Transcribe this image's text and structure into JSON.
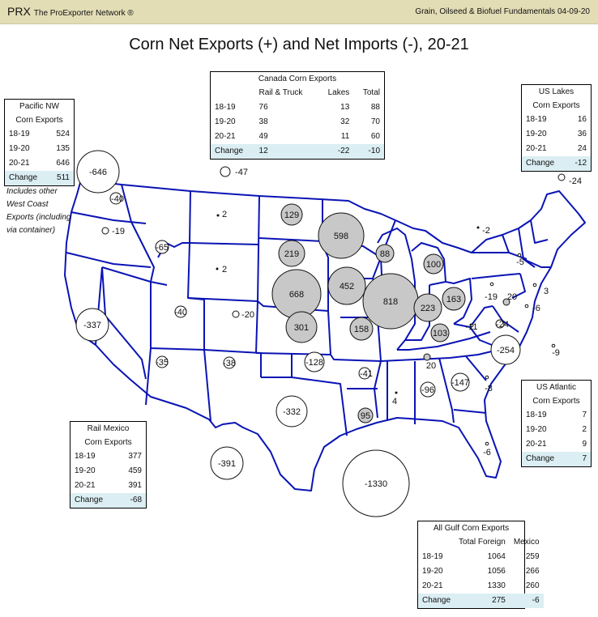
{
  "header": {
    "brand": "PRX",
    "brand_sub": "The ProExporter Network ®",
    "right_text": "Grain, Oilseed & Biofuel Fundamentals  04-09-20"
  },
  "title": "Corn Net Exports (+) and Net Imports (-), 20-21",
  "colors": {
    "banner": "#e3ddb6",
    "state_line": "#0a14b4",
    "export_bubble": "#c8c8c8",
    "import_bubble": "#ffffff",
    "change_row": "#dbeef3"
  },
  "bubbles": [
    {
      "id": "pacific-nw",
      "value": "-646",
      "kind": "import"
    },
    {
      "id": "canada-cross",
      "value": "-47",
      "kind": "import"
    },
    {
      "id": "wa-east",
      "value": "-40",
      "kind": "import"
    },
    {
      "id": "or",
      "value": "-19",
      "kind": "import"
    },
    {
      "id": "id",
      "value": "-65",
      "kind": "import"
    },
    {
      "id": "mt",
      "value": "2",
      "kind": "export"
    },
    {
      "id": "wy",
      "value": "2",
      "kind": "export"
    },
    {
      "id": "nd",
      "value": "129",
      "kind": "export"
    },
    {
      "id": "sd",
      "value": "219",
      "kind": "export"
    },
    {
      "id": "mn",
      "value": "598",
      "kind": "export"
    },
    {
      "id": "wi",
      "value": "88",
      "kind": "export"
    },
    {
      "id": "mi",
      "value": "100",
      "kind": "export"
    },
    {
      "id": "ne",
      "value": "668",
      "kind": "export"
    },
    {
      "id": "ia",
      "value": "452",
      "kind": "export"
    },
    {
      "id": "il",
      "value": "818",
      "kind": "export"
    },
    {
      "id": "in",
      "value": "223",
      "kind": "export"
    },
    {
      "id": "oh",
      "value": "163",
      "kind": "export"
    },
    {
      "id": "ks",
      "value": "301",
      "kind": "export"
    },
    {
      "id": "mo",
      "value": "158",
      "kind": "export"
    },
    {
      "id": "ky",
      "value": "103",
      "kind": "export"
    },
    {
      "id": "ca",
      "value": "-337",
      "kind": "import"
    },
    {
      "id": "ut",
      "value": "-40",
      "kind": "import"
    },
    {
      "id": "co",
      "value": "-20",
      "kind": "import"
    },
    {
      "id": "az",
      "value": "-35",
      "kind": "import"
    },
    {
      "id": "nm",
      "value": "-38",
      "kind": "import"
    },
    {
      "id": "ok",
      "value": "-128",
      "kind": "import"
    },
    {
      "id": "tx-north",
      "value": "-332",
      "kind": "import"
    },
    {
      "id": "rail-mexico",
      "value": "-391",
      "kind": "import"
    },
    {
      "id": "gulf",
      "value": "-1330",
      "kind": "import"
    },
    {
      "id": "ar",
      "value": "-41",
      "kind": "import"
    },
    {
      "id": "la",
      "value": "95",
      "kind": "export"
    },
    {
      "id": "ms",
      "value": "4",
      "kind": "export"
    },
    {
      "id": "al",
      "value": "-96",
      "kind": "import"
    },
    {
      "id": "tn",
      "value": "20",
      "kind": "export"
    },
    {
      "id": "ga",
      "value": "-147",
      "kind": "import"
    },
    {
      "id": "sc",
      "value": "-8",
      "kind": "import"
    },
    {
      "id": "fl",
      "value": "-6",
      "kind": "import"
    },
    {
      "id": "nc",
      "value": "-254",
      "kind": "import"
    },
    {
      "id": "wv",
      "value": "-11",
      "kind": "import"
    },
    {
      "id": "va",
      "value": "-24",
      "kind": "import"
    },
    {
      "id": "pa",
      "value": "-19",
      "kind": "import"
    },
    {
      "id": "pa-east",
      "value": "20",
      "kind": "export"
    },
    {
      "id": "nj",
      "value": "-6",
      "kind": "import"
    },
    {
      "id": "de",
      "value": "3",
      "kind": "export"
    },
    {
      "id": "ny",
      "value": "-5",
      "kind": "import"
    },
    {
      "id": "new-england",
      "value": "-2",
      "kind": "import"
    },
    {
      "id": "atlantic-off",
      "value": "-9",
      "kind": "import"
    },
    {
      "id": "us-lakes",
      "value": "-24",
      "kind": "import"
    }
  ],
  "boxes": {
    "pacific_nw": {
      "title_1": "Pacific NW",
      "title_2": "Corn Exports",
      "rows": [
        [
          "18-19",
          "524"
        ],
        [
          "19-20",
          "135"
        ],
        [
          "20-21",
          "646"
        ]
      ],
      "change": [
        "Change",
        "511"
      ]
    },
    "pacific_note": "Includes other West Coast Exports (including via container)",
    "canada": {
      "title": "Canada Corn Exports",
      "cols": [
        "Rail & Truck",
        "Lakes",
        "Total"
      ],
      "rows": [
        [
          "18-19",
          "76",
          "13",
          "88"
        ],
        [
          "19-20",
          "38",
          "32",
          "70"
        ],
        [
          "20-21",
          "49",
          "11",
          "60"
        ]
      ],
      "change": [
        "Change",
        "12",
        "-22",
        "-10"
      ]
    },
    "us_lakes": {
      "title_1": "US Lakes",
      "title_2": "Corn Exports",
      "rows": [
        [
          "18-19",
          "16"
        ],
        [
          "19-20",
          "36"
        ],
        [
          "20-21",
          "24"
        ]
      ],
      "change": [
        "Change",
        "-12"
      ]
    },
    "us_atlantic": {
      "title_1": "US Atlantic",
      "title_2": "Corn Exports",
      "rows": [
        [
          "18-19",
          "7"
        ],
        [
          "19-20",
          "2"
        ],
        [
          "20-21",
          "9"
        ]
      ],
      "change": [
        "Change",
        "7"
      ]
    },
    "rail_mexico": {
      "title_1": "Rail Mexico",
      "title_2": "Corn Exports",
      "rows": [
        [
          "18-19",
          "377"
        ],
        [
          "19-20",
          "459"
        ],
        [
          "20-21",
          "391"
        ]
      ],
      "change": [
        "Change",
        "-68"
      ]
    },
    "gulf": {
      "title": "All Gulf Corn Exports",
      "cols": [
        "Total Foreign",
        "Mexico"
      ],
      "rows": [
        [
          "18-19",
          "1064",
          "259"
        ],
        [
          "19-20",
          "1056",
          "266"
        ],
        [
          "20-21",
          "1330",
          "260"
        ]
      ],
      "change": [
        "Change",
        "275",
        "-6"
      ]
    }
  }
}
